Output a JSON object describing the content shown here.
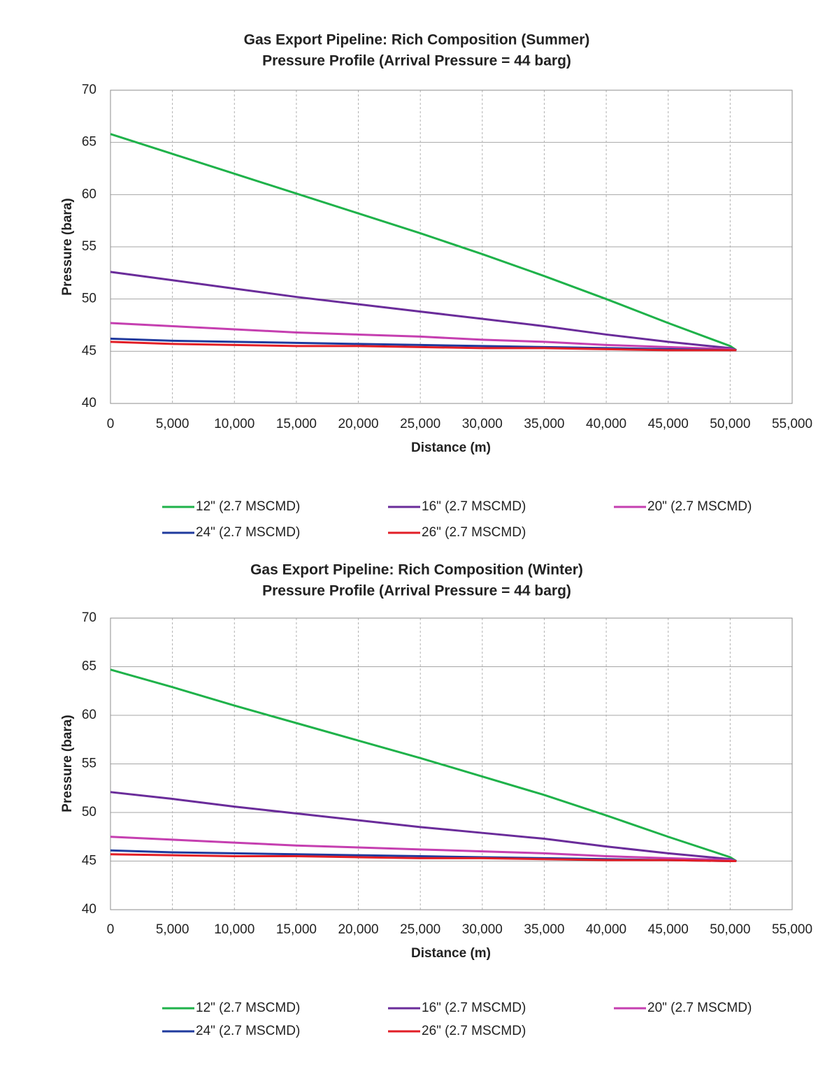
{
  "chart_data": [
    {
      "type": "line",
      "title": "Gas Export Pipeline: Rich Composition (Summer)",
      "subtitle": "Pressure Profile (Arrival Pressure = 44 barg)",
      "x_label": "Distance (m)",
      "y_label": "Pressure (bara)",
      "x": [
        0,
        5000,
        10000,
        15000,
        20000,
        25000,
        30000,
        35000,
        40000,
        45000,
        50000,
        50500
      ],
      "series": [
        {
          "name": "12\" (2.7 MSCMD)",
          "color": "#1fb24a",
          "values": [
            65.8,
            63.9,
            62.0,
            60.1,
            58.2,
            56.3,
            54.3,
            52.2,
            50.0,
            47.7,
            45.5,
            45.1
          ]
        },
        {
          "name": "16\" (2.7 MSCMD)",
          "color": "#6a2c9a",
          "values": [
            52.6,
            51.8,
            51.0,
            50.2,
            49.5,
            48.8,
            48.1,
            47.4,
            46.6,
            45.9,
            45.3,
            45.1
          ]
        },
        {
          "name": "20\" (2.7 MSCMD)",
          "color": "#c53fb0",
          "values": [
            47.7,
            47.4,
            47.1,
            46.8,
            46.6,
            46.4,
            46.1,
            45.9,
            45.6,
            45.4,
            45.2,
            45.1
          ]
        },
        {
          "name": "24\" (2.7 MSCMD)",
          "color": "#1f3a9e",
          "values": [
            46.2,
            46.0,
            45.9,
            45.8,
            45.7,
            45.6,
            45.5,
            45.4,
            45.3,
            45.2,
            45.1,
            45.1
          ]
        },
        {
          "name": "26\" (2.7 MSCMD)",
          "color": "#e21e26",
          "values": [
            45.9,
            45.7,
            45.6,
            45.5,
            45.5,
            45.4,
            45.3,
            45.3,
            45.2,
            45.1,
            45.1,
            45.1
          ]
        }
      ],
      "xlim": [
        0,
        55000
      ],
      "xticks": [
        0,
        {
          "value": 5000,
          "label": "5,000"
        },
        {
          "value": 10000,
          "label": "10,000"
        },
        {
          "value": 15000,
          "label": "15,000"
        },
        {
          "value": 20000,
          "label": "20,000"
        },
        {
          "value": 25000,
          "label": "25,000"
        },
        {
          "value": 30000,
          "label": "30,000"
        },
        {
          "value": 35000,
          "label": "35,000"
        },
        {
          "value": 40000,
          "label": "40,000"
        },
        {
          "value": 45000,
          "label": "45,000"
        },
        {
          "value": 50000,
          "label": "50,000"
        },
        {
          "value": 55000,
          "label": "55,000"
        }
      ],
      "ylim": [
        40,
        70
      ],
      "yticks": [
        40,
        45,
        50,
        55,
        60,
        65,
        70
      ],
      "grid": true,
      "legend": "bottom"
    },
    {
      "type": "line",
      "title": "Gas Export Pipeline: Rich Composition (Winter)",
      "subtitle": "Pressure Profile (Arrival Pressure = 44 barg)",
      "x_label": "Distance (m)",
      "y_label": "Pressure (bara)",
      "x": [
        0,
        5000,
        10000,
        15000,
        20000,
        25000,
        30000,
        35000,
        40000,
        45000,
        50000,
        50500
      ],
      "series": [
        {
          "name": "12\" (2.7 MSCMD)",
          "color": "#1fb24a",
          "values": [
            64.7,
            62.9,
            61.0,
            59.2,
            57.4,
            55.6,
            53.7,
            51.8,
            49.7,
            47.5,
            45.4,
            45.0
          ]
        },
        {
          "name": "16\" (2.7 MSCMD)",
          "color": "#6a2c9a",
          "values": [
            52.1,
            51.4,
            50.6,
            49.9,
            49.2,
            48.5,
            47.9,
            47.3,
            46.5,
            45.8,
            45.2,
            45.0
          ]
        },
        {
          "name": "20\" (2.7 MSCMD)",
          "color": "#c53fb0",
          "values": [
            47.5,
            47.2,
            46.9,
            46.6,
            46.4,
            46.2,
            46.0,
            45.8,
            45.5,
            45.3,
            45.1,
            45.0
          ]
        },
        {
          "name": "24\" (2.7 MSCMD)",
          "color": "#1f3a9e",
          "values": [
            46.1,
            45.9,
            45.8,
            45.7,
            45.6,
            45.5,
            45.4,
            45.3,
            45.2,
            45.1,
            45.0,
            45.0
          ]
        },
        {
          "name": "26\" (2.7 MSCMD)",
          "color": "#e21e26",
          "values": [
            45.7,
            45.6,
            45.5,
            45.5,
            45.4,
            45.3,
            45.3,
            45.2,
            45.1,
            45.1,
            45.0,
            45.0
          ]
        }
      ],
      "xlim": [
        0,
        55000
      ],
      "xticks": [
        0,
        {
          "value": 5000,
          "label": "5,000"
        },
        {
          "value": 10000,
          "label": "10,000"
        },
        {
          "value": 15000,
          "label": "15,000"
        },
        {
          "value": 20000,
          "label": "20,000"
        },
        {
          "value": 25000,
          "label": "25,000"
        },
        {
          "value": 30000,
          "label": "30,000"
        },
        {
          "value": 35000,
          "label": "35,000"
        },
        {
          "value": 40000,
          "label": "40,000"
        },
        {
          "value": 45000,
          "label": "45,000"
        },
        {
          "value": 50000,
          "label": "50,000"
        },
        {
          "value": 55000,
          "label": "55,000"
        }
      ],
      "ylim": [
        40,
        70
      ],
      "yticks": [
        40,
        45,
        50,
        55,
        60,
        65,
        70
      ],
      "grid": true,
      "legend": "bottom"
    }
  ]
}
